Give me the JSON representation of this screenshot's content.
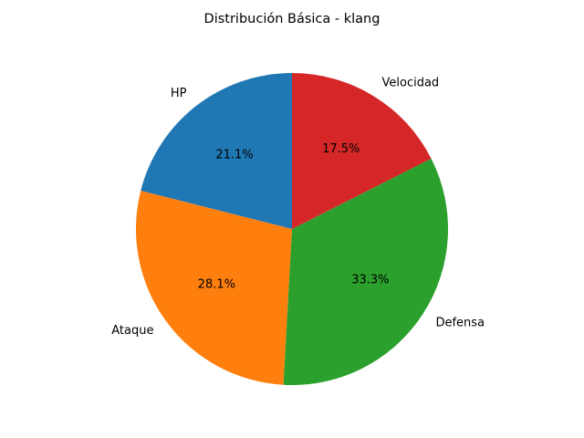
{
  "chart_data": {
    "type": "pie",
    "title": "Distribución Básica - klang",
    "categories": [
      "HP",
      "Ataque",
      "Defensa",
      "Velocidad"
    ],
    "values": [
      60,
      80,
      95,
      50
    ],
    "percent_labels": [
      "21.1%",
      "28.1%",
      "33.3%",
      "17.5%"
    ],
    "colors": [
      "#1f77b4",
      "#ff7f0e",
      "#2ca02c",
      "#d62728"
    ],
    "start_angle_deg": 90,
    "direction": "counterclockwise",
    "legend": "none"
  }
}
